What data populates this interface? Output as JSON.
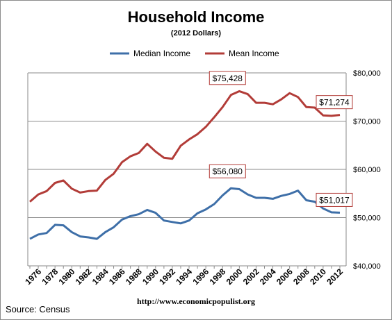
{
  "chart_data": {
    "type": "line",
    "title": "Household Income",
    "subtitle": "(2012 Dollars)",
    "xlabel": "",
    "ylabel": "",
    "ylim": [
      40000,
      80000
    ],
    "yticks": [
      40000,
      50000,
      60000,
      70000,
      80000
    ],
    "ytick_labels": [
      "$40,000",
      "$50,000",
      "$60,000",
      "$70,000",
      "$80,000"
    ],
    "y_axis_side": "right",
    "grid": "horizontal",
    "legend_position": "top",
    "xtick_labels": [
      "1976",
      "1978",
      "1980",
      "1982",
      "1984",
      "1986",
      "1988",
      "1990",
      "1992",
      "1994",
      "1996",
      "1998",
      "2000",
      "2002",
      "2004",
      "2006",
      "2008",
      "2010",
      "2012"
    ],
    "x": [
      1975,
      1976,
      1977,
      1978,
      1979,
      1980,
      1981,
      1982,
      1983,
      1984,
      1985,
      1986,
      1987,
      1988,
      1989,
      1990,
      1991,
      1992,
      1993,
      1994,
      1995,
      1996,
      1997,
      1998,
      1999,
      2000,
      2001,
      2002,
      2003,
      2004,
      2005,
      2006,
      2007,
      2008,
      2009,
      2010,
      2011,
      2012
    ],
    "series": [
      {
        "name": "Median Income",
        "color": "#3e6fa8",
        "values": [
          45600,
          46500,
          46800,
          48500,
          48400,
          47000,
          46100,
          45900,
          45600,
          47000,
          48000,
          49600,
          50300,
          50700,
          51600,
          51000,
          49400,
          49100,
          48800,
          49400,
          50900,
          51700,
          52800,
          54600,
          56080,
          55900,
          54800,
          54100,
          54100,
          53900,
          54500,
          54900,
          55600,
          53600,
          53300,
          51900,
          51100,
          51017
        ]
      },
      {
        "name": "Mean Income",
        "color": "#b23c38",
        "values": [
          53300,
          54800,
          55500,
          57200,
          57700,
          56000,
          55200,
          55500,
          55600,
          57800,
          59100,
          61500,
          62700,
          63400,
          65300,
          63700,
          62400,
          62200,
          64900,
          66200,
          67300,
          68800,
          70800,
          72900,
          75428,
          76200,
          75600,
          73800,
          73800,
          73500,
          74500,
          75800,
          75000,
          72900,
          72800,
          71200,
          71100,
          71274
        ]
      }
    ],
    "annotations": [
      {
        "series": 1,
        "x": 1999,
        "text": "$75,428"
      },
      {
        "series": 1,
        "x": 2012,
        "text": "$71,274"
      },
      {
        "series": 0,
        "x": 1999,
        "text": "$56,080"
      },
      {
        "series": 0,
        "x": 2012,
        "text": "$51,017"
      }
    ]
  },
  "footer": {
    "source": "Source:  Census",
    "url": "http://www.economicpopulist.org"
  }
}
